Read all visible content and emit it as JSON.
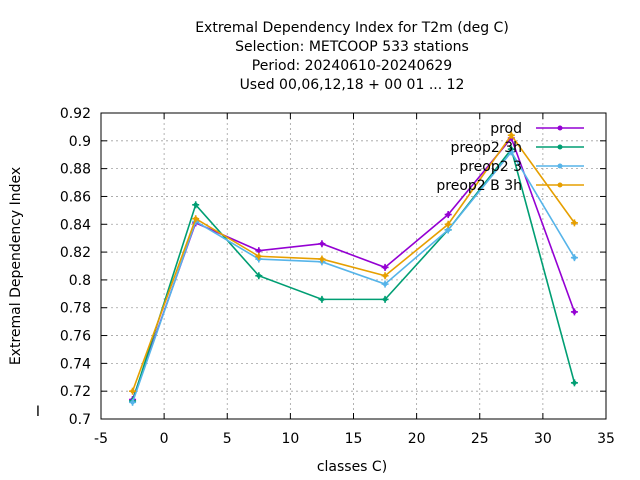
{
  "chart_data": {
    "type": "line",
    "title_lines": [
      "Extremal Dependency Index  for T2m (deg C)",
      "Selection: METCOOP    533 stations",
      "Period: 20240610-20240629",
      "Used  00,06,12,18 + 00 01 ... 12"
    ],
    "xlabel": "classes C)",
    "ylabel": "Extremal Dependency Index",
    "xlim": [
      -5,
      35
    ],
    "ylim": [
      0.7,
      0.92
    ],
    "xticks": [
      "-5",
      "0",
      "5",
      "10",
      "15",
      "20",
      "25",
      "30",
      "35"
    ],
    "yticks": [
      "0.7",
      "0.72",
      "0.74",
      "0.76",
      "0.78",
      "0.8",
      "0.82",
      "0.84",
      "0.86",
      "0.88",
      "0.9",
      "0.92"
    ],
    "grid": true,
    "legend_placement": "top-right",
    "x": [
      -2.5,
      2.5,
      7.5,
      12.5,
      17.5,
      22.5,
      27.5,
      32.5
    ],
    "series": [
      {
        "name": "prod",
        "color": "#9400d3",
        "values": [
          0.714,
          0.841,
          0.821,
          0.826,
          0.809,
          0.847,
          0.902,
          0.777
        ]
      },
      {
        "name": "preop2 3h",
        "color": "#009e73",
        "values": [
          0.713,
          0.854,
          0.803,
          0.786,
          0.786,
          0.836,
          0.894,
          0.726
        ]
      },
      {
        "name": "preop2 3",
        "color": "#56b4e9",
        "values": [
          0.712,
          0.842,
          0.815,
          0.813,
          0.797,
          0.836,
          0.892,
          0.816
        ]
      },
      {
        "name": "preop2 B 3h",
        "color": "#e69f00",
        "values": [
          0.72,
          0.844,
          0.817,
          0.815,
          0.803,
          0.84,
          0.904,
          0.841
        ]
      }
    ],
    "left_mark": "I"
  }
}
